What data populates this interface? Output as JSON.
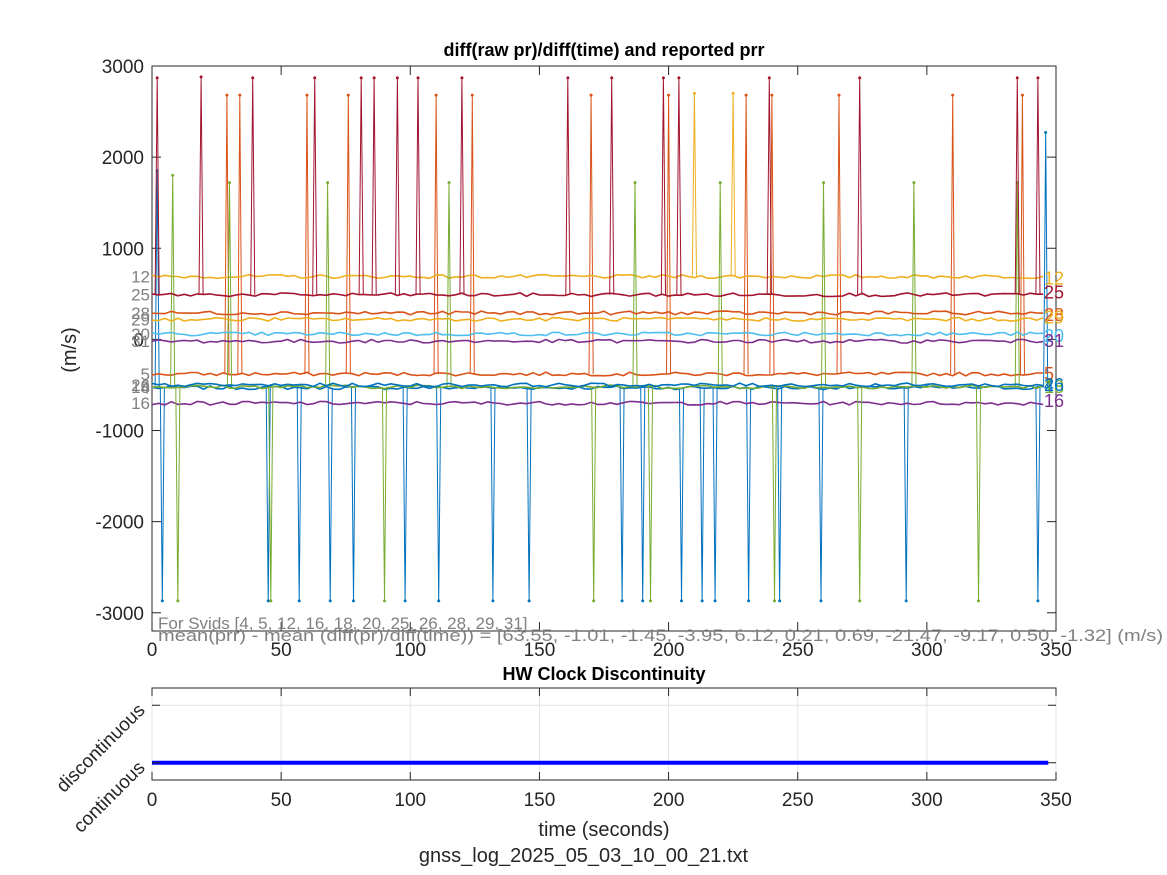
{
  "figure_caption": "gnss_log_2025_05_03_10_00_21.txt",
  "chart_data": [
    {
      "type": "line",
      "title": "diff(raw pr)/diff(time) and reported prr",
      "xlabel": "",
      "ylabel": "(m/s)",
      "xlim": [
        0,
        350
      ],
      "ylim": [
        -3200,
        3000
      ],
      "xticks": [
        0,
        50,
        100,
        150,
        200,
        250,
        300,
        350
      ],
      "yticks": [
        -3000,
        -2000,
        -1000,
        0,
        1000,
        2000,
        3000
      ],
      "grid": false,
      "note_line1": "For Svids [4, 5, 12, 16, 18, 20, 25, 26, 28, 29, 31]",
      "note_line2": "mean(prr) - mean (diff(pr)/diff(time)) = [63.55, -1.01, -1.45, -3.95, 6.12, 0.21, 0.69, -21.47, -9.17, 0.50, -1.32] (m/s)",
      "series": [
        {
          "name": "4",
          "color": "#0072BD",
          "prr": -530,
          "start": 0,
          "end": 347,
          "spike_points": [
            [
              2,
              1850
            ],
            [
              4,
              -2870
            ],
            [
              45,
              -2870
            ],
            [
              57,
              -2870
            ],
            [
              69,
              -2870
            ],
            [
              78,
              -2870
            ],
            [
              98,
              -2870
            ],
            [
              111,
              -2870
            ],
            [
              132,
              -2870
            ],
            [
              146,
              -2870
            ],
            [
              182,
              -2870
            ],
            [
              190,
              -2870
            ],
            [
              205,
              -2870
            ],
            [
              213,
              -2870
            ],
            [
              218,
              -2870
            ],
            [
              231,
              -2870
            ],
            [
              243,
              -2870
            ],
            [
              259,
              -2870
            ],
            [
              292,
              -2870
            ],
            [
              343,
              -2870
            ],
            [
              346,
              2270
            ]
          ]
        },
        {
          "name": "5",
          "color": "#D95319",
          "prr": -380,
          "start": 0,
          "end": 347,
          "spike_points": [
            [
              29,
              2680
            ],
            [
              34,
              2680
            ],
            [
              60,
              2680
            ],
            [
              76,
              2680
            ],
            [
              110,
              2680
            ],
            [
              124,
              2680
            ],
            [
              170,
              2680
            ],
            [
              200,
              2680
            ],
            [
              230,
              2680
            ],
            [
              240,
              2680
            ],
            [
              266,
              2680
            ],
            [
              310,
              2680
            ],
            [
              337,
              2680
            ]
          ]
        },
        {
          "name": "12",
          "color": "#EDB120",
          "prr": 690,
          "start": 0,
          "end": 347,
          "spike_points": [
            [
              210,
              2700
            ],
            [
              225,
              2700
            ]
          ]
        },
        {
          "name": "16",
          "color": "#7E2F8E",
          "prr": -700,
          "start": 0,
          "end": 347,
          "spike_points": []
        },
        {
          "name": "18",
          "color": "#77AC30",
          "prr": -520,
          "start": 0,
          "end": 347,
          "spike_points": [
            [
              8,
              1800
            ],
            [
              10,
              -2870
            ],
            [
              30,
              1720
            ],
            [
              46,
              -2870
            ],
            [
              68,
              1720
            ],
            [
              90,
              -2870
            ],
            [
              115,
              1720
            ],
            [
              171,
              -2870
            ],
            [
              187,
              1720
            ],
            [
              193,
              -2870
            ],
            [
              220,
              1720
            ],
            [
              241,
              -2870
            ],
            [
              260,
              1720
            ],
            [
              274,
              -2870
            ],
            [
              295,
              1720
            ],
            [
              320,
              -2870
            ],
            [
              335,
              1720
            ]
          ]
        },
        {
          "name": "20",
          "color": "#4DBEEE",
          "prr": 60,
          "start": 0,
          "end": 347,
          "spike_points": []
        },
        {
          "name": "25",
          "color": "#A2142F",
          "prr": 490,
          "start": 0,
          "end": 347,
          "spike_points": [
            [
              2,
              2870
            ],
            [
              19,
              2880
            ],
            [
              39,
              2870
            ],
            [
              63,
              2870
            ],
            [
              81,
              2870
            ],
            [
              86,
              2870
            ],
            [
              95,
              2870
            ],
            [
              103,
              2870
            ],
            [
              120,
              2870
            ],
            [
              161,
              2870
            ],
            [
              178,
              2870
            ],
            [
              198,
              2870
            ],
            [
              204,
              2870
            ],
            [
              239,
              2870
            ],
            [
              274,
              2870
            ],
            [
              335,
              2870
            ],
            [
              343,
              2870
            ]
          ]
        },
        {
          "name": "26",
          "color": "#0072BD",
          "prr": -500,
          "start": 0,
          "end": 347,
          "spike_points": []
        },
        {
          "name": "28",
          "color": "#D95319",
          "prr": 290,
          "start": 0,
          "end": 347,
          "spike_points": []
        },
        {
          "name": "29",
          "color": "#EDB120",
          "prr": 220,
          "start": 0,
          "end": 347,
          "spike_points": []
        },
        {
          "name": "31",
          "color": "#7E2F8E",
          "prr": -20,
          "start": 0,
          "end": 347,
          "spike_points": []
        }
      ]
    },
    {
      "type": "line",
      "title": "HW Clock Discontinuity",
      "xlabel": "time (seconds)",
      "ylabel": "",
      "xlim": [
        0,
        350
      ],
      "ylim": [
        -0.3,
        1.3
      ],
      "xticks": [
        0,
        50,
        100,
        150,
        200,
        250,
        300,
        350
      ],
      "ytick_labels": [
        "continuous",
        "discontinuous"
      ],
      "grid": true,
      "series": [
        {
          "color": "#0000FF",
          "x": [
            0,
            347
          ],
          "y": [
            0,
            0
          ]
        }
      ]
    }
  ]
}
